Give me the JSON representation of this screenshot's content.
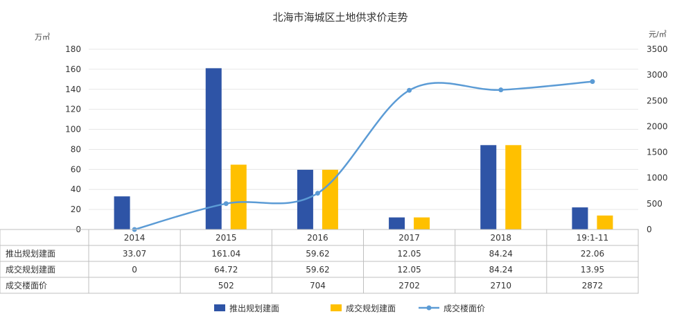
{
  "chart_data": {
    "type": "bar",
    "title": "北海市海城区土地供求价走势",
    "left_unit": "万㎡",
    "right_unit": "元/㎡",
    "categories": [
      "2014",
      "2015",
      "2016",
      "2017",
      "2018",
      "19:1-11"
    ],
    "ylim_left": [
      0,
      180
    ],
    "yticks_left": [
      "0",
      "20",
      "40",
      "60",
      "80",
      "100",
      "120",
      "140",
      "160",
      "180"
    ],
    "ylim_right": [
      0,
      3500
    ],
    "yticks_right": [
      "0",
      "500",
      "1000",
      "1500",
      "2000",
      "2500",
      "3000",
      "3500"
    ],
    "grid": true,
    "legend_position": "bottom",
    "series": [
      {
        "name": "推出规划建面",
        "type": "bar",
        "axis": "left",
        "color": "#2E54A6",
        "values": [
          33.07,
          161.04,
          59.62,
          12.05,
          84.24,
          22.06
        ],
        "labels": [
          "33.07",
          "161.04",
          "59.62",
          "12.05",
          "84.24",
          "22.06"
        ]
      },
      {
        "name": "成交规划建面",
        "type": "bar",
        "axis": "left",
        "color": "#FFC000",
        "values": [
          0,
          64.72,
          59.62,
          12.05,
          84.24,
          13.95
        ],
        "labels": [
          "0",
          "64.72",
          "59.62",
          "12.05",
          "84.24",
          "13.95"
        ]
      },
      {
        "name": "成交楼面价",
        "type": "line",
        "axis": "right",
        "color": "#5B9BD5",
        "values": [
          0,
          502,
          704,
          2702,
          2710,
          2872
        ],
        "labels": [
          "",
          "502",
          "704",
          "2702",
          "2710",
          "2872"
        ]
      }
    ]
  }
}
